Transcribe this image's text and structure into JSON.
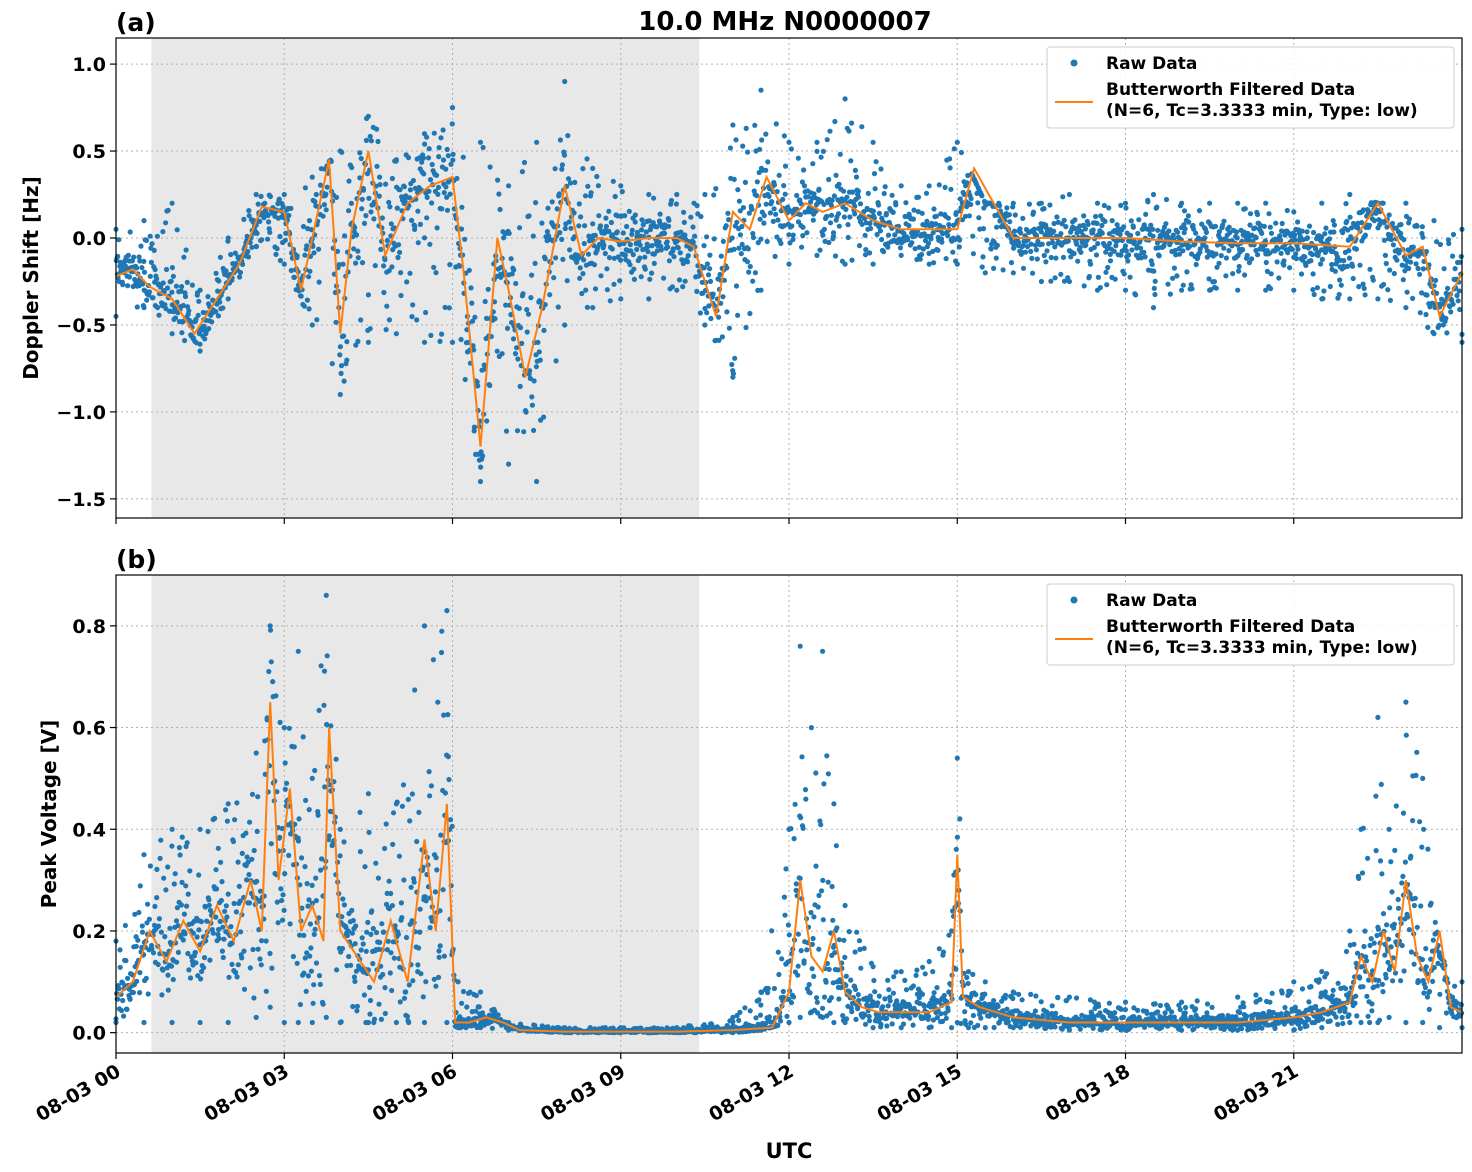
{
  "chart_data": [
    {
      "type": "line",
      "panel_label": "(a)",
      "title": "10.0 MHz N0000007",
      "ylabel": "Doppler Shift [Hz]",
      "xlabel": "",
      "x_range_hours": [
        0,
        24
      ],
      "ylim": [
        -1.61,
        1.15
      ],
      "yticks": [
        1.0,
        0.5,
        0.0,
        -0.5,
        -1.0,
        -1.5
      ],
      "ytick_labels": [
        "1.0",
        "0.5",
        "0.0",
        "−0.5",
        "−1.0",
        "−1.5"
      ],
      "shaded_region_hours": [
        0.63,
        10.4
      ],
      "grid": true,
      "legend_position": "top-right",
      "legend": [
        "Raw Data",
        "Butterworth Filtered Data",
        "(N=6, Tc=3.3333 min, Type: low)"
      ],
      "series": [
        {
          "name": "Raw Data",
          "style": "scatter",
          "color": "#1f77b4",
          "x_hours": [
            0,
            0.5,
            1,
            1.5,
            2,
            2.5,
            3,
            3.5,
            4,
            4.5,
            5,
            5.5,
            6,
            6.5,
            7,
            7.5,
            8,
            8.5,
            9,
            9.5,
            10,
            10.5,
            11,
            11.5,
            12,
            12.5,
            13,
            13.5,
            14,
            14.5,
            15,
            15.5,
            16,
            16.5,
            17,
            17.5,
            18,
            18.5,
            19,
            19.5,
            20,
            20.5,
            21,
            21.5,
            22,
            22.5,
            23,
            23.5,
            24
          ],
          "y_min": [
            -0.45,
            -0.4,
            -0.55,
            -0.65,
            -0.35,
            -0.05,
            -0.15,
            -0.5,
            -0.9,
            -0.6,
            -0.55,
            -0.6,
            -0.6,
            -1.4,
            -1.3,
            -1.4,
            -0.5,
            -0.4,
            -0.35,
            -0.35,
            -0.3,
            -0.5,
            -0.8,
            -0.3,
            -0.15,
            -0.1,
            -0.15,
            -0.15,
            -0.1,
            -0.15,
            -0.15,
            -0.2,
            -0.2,
            -0.25,
            -0.25,
            -0.3,
            -0.3,
            -0.4,
            -0.3,
            -0.3,
            -0.3,
            -0.3,
            -0.3,
            -0.35,
            -0.35,
            -0.35,
            -0.4,
            -0.55,
            -0.6
          ],
          "y_max": [
            0.05,
            0.1,
            0.2,
            -0.3,
            0.0,
            0.25,
            0.25,
            0.35,
            0.5,
            0.7,
            0.45,
            0.6,
            0.75,
            0.55,
            0.3,
            0.55,
            0.9,
            0.4,
            0.3,
            0.25,
            0.25,
            0.25,
            0.65,
            0.85,
            0.55,
            0.55,
            0.8,
            0.55,
            0.3,
            0.3,
            0.55,
            0.2,
            0.2,
            0.2,
            0.25,
            0.2,
            0.2,
            0.25,
            0.2,
            0.2,
            0.2,
            0.2,
            0.15,
            0.2,
            0.25,
            0.2,
            0.2,
            0.1,
            0.05
          ]
        },
        {
          "name": "Butterworth Filtered Data",
          "style": "line",
          "color": "#ff7f0e",
          "x_hours": [
            0,
            0.3,
            0.6,
            1,
            1.4,
            1.8,
            2.2,
            2.6,
            3,
            3.3,
            3.6,
            3.8,
            4,
            4.2,
            4.5,
            4.8,
            5.2,
            5.6,
            6,
            6.2,
            6.5,
            6.8,
            7,
            7.3,
            7.6,
            8,
            8.3,
            8.6,
            9,
            9.5,
            10,
            10.3,
            10.7,
            11,
            11.3,
            11.6,
            12,
            12.3,
            12.6,
            13,
            13.5,
            14,
            14.5,
            15,
            15.3,
            16,
            17,
            18,
            19,
            20,
            21,
            22,
            22.5,
            23,
            23.3,
            23.6,
            24
          ],
          "y": [
            -0.22,
            -0.18,
            -0.28,
            -0.35,
            -0.55,
            -0.35,
            -0.15,
            0.18,
            0.15,
            -0.3,
            0.15,
            0.45,
            -0.55,
            0.05,
            0.5,
            -0.1,
            0.2,
            0.3,
            0.35,
            -0.2,
            -1.2,
            0.0,
            -0.3,
            -0.8,
            -0.4,
            0.3,
            -0.1,
            0.0,
            -0.02,
            0.0,
            0.0,
            -0.05,
            -0.45,
            0.15,
            0.05,
            0.35,
            0.1,
            0.2,
            0.15,
            0.2,
            0.1,
            0.05,
            0.05,
            0.05,
            0.4,
            0.0,
            0.0,
            0.0,
            -0.02,
            -0.03,
            -0.03,
            -0.05,
            0.2,
            -0.1,
            -0.05,
            -0.45,
            -0.2
          ]
        }
      ]
    },
    {
      "type": "line",
      "panel_label": "(b)",
      "title": "",
      "ylabel": "Peak Voltage [V]",
      "xlabel": "UTC",
      "x_range_hours": [
        0,
        24
      ],
      "ylim": [
        -0.04,
        0.9
      ],
      "yticks": [
        0.0,
        0.2,
        0.4,
        0.6,
        0.8
      ],
      "ytick_labels": [
        "0.0",
        "0.2",
        "0.4",
        "0.6",
        "0.8"
      ],
      "xticks_hours": [
        0,
        3,
        6,
        9,
        12,
        15,
        18,
        21
      ],
      "xtick_labels": [
        "08-03 00",
        "08-03 03",
        "08-03 06",
        "08-03 09",
        "08-03 12",
        "08-03 15",
        "08-03 18",
        "08-03 21"
      ],
      "shaded_region_hours": [
        0.63,
        10.4
      ],
      "grid": true,
      "legend_position": "top-right",
      "legend": [
        "Raw Data",
        "Butterworth Filtered Data",
        "(N=6, Tc=3.3333 min, Type: low)"
      ],
      "series": [
        {
          "name": "Raw Data",
          "style": "scatter",
          "color": "#1f77b4",
          "x_hours": [
            0,
            0.5,
            1,
            1.5,
            2,
            2.5,
            2.75,
            3,
            3.25,
            3.5,
            3.75,
            4,
            4.5,
            5,
            5.5,
            5.9,
            6.1,
            6.5,
            7,
            8,
            9,
            10,
            11,
            11.5,
            12,
            12.2,
            12.4,
            12.6,
            12.8,
            13,
            13.5,
            14,
            14.5,
            14.9,
            15,
            15.2,
            15.5,
            16,
            17,
            18,
            19,
            20,
            21,
            21.5,
            22,
            22.2,
            22.5,
            22.7,
            23,
            23.3,
            23.6,
            24
          ],
          "y_min": [
            0.02,
            0.02,
            0.02,
            0.02,
            0.02,
            0.03,
            0.05,
            0.02,
            0.02,
            0.02,
            0.03,
            0.02,
            0.02,
            0.02,
            0.02,
            0.02,
            0.01,
            0.01,
            0.005,
            0.0,
            0.0,
            0.0,
            0.0,
            0.005,
            0.02,
            0.03,
            0.04,
            0.03,
            0.02,
            0.02,
            0.01,
            0.01,
            0.01,
            0.01,
            0.02,
            0.01,
            0.01,
            0.01,
            0.005,
            0.005,
            0.005,
            0.005,
            0.005,
            0.01,
            0.02,
            0.02,
            0.02,
            0.03,
            0.02,
            0.02,
            0.01,
            0.01
          ],
          "y_max": [
            0.18,
            0.35,
            0.4,
            0.4,
            0.45,
            0.55,
            0.8,
            0.6,
            0.75,
            0.5,
            0.86,
            0.4,
            0.47,
            0.45,
            0.8,
            0.83,
            0.1,
            0.08,
            0.02,
            0.01,
            0.01,
            0.01,
            0.03,
            0.08,
            0.4,
            0.76,
            0.6,
            0.75,
            0.45,
            0.25,
            0.13,
            0.12,
            0.14,
            0.2,
            0.54,
            0.12,
            0.1,
            0.08,
            0.07,
            0.06,
            0.06,
            0.07,
            0.1,
            0.12,
            0.2,
            0.4,
            0.62,
            0.4,
            0.65,
            0.5,
            0.15,
            0.1
          ]
        },
        {
          "name": "Butterworth Filtered Data",
          "style": "line",
          "color": "#ff7f0e",
          "x_hours": [
            0,
            0.3,
            0.6,
            0.9,
            1.2,
            1.5,
            1.8,
            2.1,
            2.4,
            2.6,
            2.75,
            2.9,
            3.1,
            3.3,
            3.5,
            3.7,
            3.8,
            4,
            4.3,
            4.6,
            4.9,
            5.2,
            5.5,
            5.7,
            5.9,
            6.05,
            6.3,
            6.6,
            6.9,
            7.2,
            8,
            9,
            10,
            11,
            11.7,
            12,
            12.2,
            12.4,
            12.6,
            12.8,
            13,
            13.3,
            13.6,
            14,
            14.5,
            14.9,
            15,
            15.1,
            15.4,
            16,
            17,
            18,
            19,
            20,
            21,
            21.5,
            22,
            22.2,
            22.4,
            22.6,
            22.8,
            23,
            23.2,
            23.4,
            23.6,
            23.8,
            24
          ],
          "y": [
            0.07,
            0.1,
            0.2,
            0.14,
            0.22,
            0.16,
            0.25,
            0.18,
            0.3,
            0.2,
            0.65,
            0.3,
            0.48,
            0.2,
            0.25,
            0.18,
            0.6,
            0.2,
            0.15,
            0.1,
            0.22,
            0.1,
            0.38,
            0.2,
            0.45,
            0.02,
            0.02,
            0.03,
            0.02,
            0.005,
            0.002,
            0.002,
            0.002,
            0.005,
            0.01,
            0.08,
            0.3,
            0.15,
            0.12,
            0.2,
            0.08,
            0.05,
            0.04,
            0.04,
            0.04,
            0.06,
            0.35,
            0.07,
            0.05,
            0.03,
            0.02,
            0.02,
            0.02,
            0.02,
            0.03,
            0.04,
            0.06,
            0.15,
            0.1,
            0.2,
            0.12,
            0.3,
            0.15,
            0.1,
            0.2,
            0.05,
            0.04
          ]
        }
      ]
    }
  ]
}
